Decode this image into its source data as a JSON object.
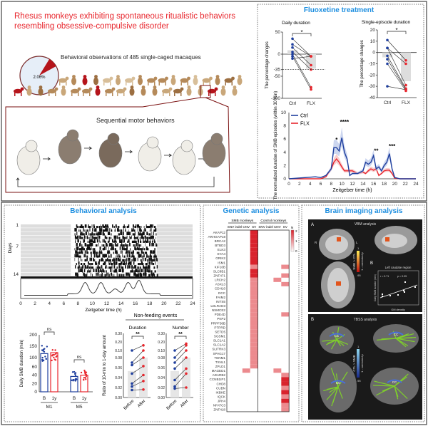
{
  "headline": [
    "Rhesus monkeys exhibiting spontaneous ritualistic behaviors",
    "resembling obsessive-compulsive disorder"
  ],
  "pie": {
    "label": "2.06%",
    "fraction": 0.0206,
    "caption": "Behavioral observations of 485 single-caged macaques"
  },
  "sequence_label": "Sequential motor behaviors",
  "colors": {
    "accent_red": "#e8262d",
    "title_blue": "#1e8fe0",
    "ctrl": "#1f3f9e",
    "flx": "#e8262d",
    "monkey_brown": "#b58a5a",
    "monkey_red": "#b5141b"
  },
  "fluoxetine": {
    "title": "Fluoxetine treatment",
    "daily": {
      "title": "Daily duration",
      "ylabel": "The percentage changes",
      "yticks": [
        "50",
        "0",
        "-35",
        "-50",
        "-100"
      ],
      "xticks": [
        "Ctrl",
        "FLX"
      ],
      "sig": "*",
      "threshold": -35,
      "ctrl": [
        35,
        22,
        15,
        5,
        0,
        -5,
        -10
      ],
      "flx": [
        -5,
        -5,
        -25,
        -35,
        -75,
        -80,
        -5
      ]
    },
    "single": {
      "title": "Single-episode duration",
      "ylabel": "The percentage changes",
      "yticks": [
        "20",
        "10",
        "0",
        "-10",
        "-20",
        "-30",
        "-40"
      ],
      "xticks": [
        "Ctrl",
        "FLX"
      ],
      "sig": "*",
      "ctrl": [
        11,
        4,
        4,
        -3,
        -6,
        -10,
        -30
      ],
      "flx": [
        -7,
        -10,
        -29,
        -32,
        -33,
        -34,
        -33
      ]
    }
  },
  "chart_data": {
    "type": "line",
    "xlabel": "Zeitgeber time (h)",
    "ylabel": "The normalized duration of SMB episodes (within 30 min)",
    "xlim": [
      0,
      24
    ],
    "ylim": [
      0,
      10
    ],
    "xticks": [
      "0",
      "2",
      "4",
      "6",
      "8",
      "10",
      "12",
      "14",
      "16",
      "18",
      "20",
      "22",
      "24"
    ],
    "yticks": [
      "0",
      "2",
      "4",
      "6",
      "8",
      "10"
    ],
    "x": [
      0,
      5,
      6,
      7,
      8,
      8.5,
      9,
      9.5,
      10,
      10.5,
      11,
      11.5,
      12,
      13,
      14,
      14.5,
      15,
      15.5,
      16,
      16.5,
      17,
      17.5,
      18,
      18.5,
      19,
      19.5,
      20,
      21,
      24
    ],
    "series": [
      {
        "name": "Ctrl",
        "values": [
          0,
          0.3,
          0.2,
          0.5,
          1.5,
          4.7,
          4.7,
          4.2,
          6.2,
          4,
          3,
          0.5,
          0.8,
          0.8,
          1.2,
          2.5,
          2.2,
          2.5,
          3.5,
          1.5,
          1.8,
          1.2,
          2,
          2.5,
          3.8,
          1.5,
          0.2,
          0,
          0
        ]
      },
      {
        "name": "FLX",
        "values": [
          0,
          0,
          0,
          0.3,
          1.5,
          2.5,
          3,
          2.5,
          1.8,
          1.2,
          1.2,
          1.2,
          1.2,
          0.8,
          1,
          0.8,
          1.2,
          1.5,
          1.3,
          1.5,
          0.5,
          0.8,
          1.2,
          1.3,
          1.3,
          0.8,
          0.1,
          0,
          0
        ]
      }
    ],
    "annotations": [
      {
        "x": 9,
        "text": "*"
      },
      {
        "x": 10.5,
        "text": "****"
      },
      {
        "x": 16.5,
        "text": "**"
      },
      {
        "x": 19.5,
        "text": "***"
      }
    ]
  },
  "behavioral": {
    "title": "Behavioral analysis",
    "days_label": "Days",
    "day_ticks": [
      "1",
      "7",
      "14"
    ],
    "xticks": [
      "0",
      "2",
      "4",
      "6",
      "8",
      "10",
      "12",
      "14",
      "16",
      "18",
      "20",
      "22",
      "24"
    ],
    "xlabel": "Zeitgeber time (h)",
    "bar": {
      "ylabel": "Daily SMB duration (min)",
      "yticks": [
        "200",
        "150",
        "100",
        "60",
        "40",
        "20",
        "0"
      ],
      "groups": [
        "M1",
        "M5"
      ],
      "conds": [
        "B",
        "1y"
      ],
      "sig": [
        "ns",
        "ns"
      ],
      "means": [
        118,
        122,
        37,
        40
      ]
    },
    "nonfeeding": {
      "title": "Non-feeding events",
      "ylabel": "Ratio of 10-min to 1-day amount",
      "yticks": [
        "0.30",
        "0.20",
        "0.10",
        "0.08",
        "0.06",
        "0.04",
        "0.02",
        "0.00"
      ],
      "panels": [
        "Duration",
        "Number"
      ],
      "conds": [
        "Before",
        "After"
      ],
      "sig": "**"
    }
  },
  "genetic": {
    "title": "Genetic analysis",
    "groups": [
      "SMB monkeys",
      "Control monkeys"
    ],
    "cols": [
      "SNV",
      "indel",
      "CNV",
      "SV"
    ],
    "legend": {
      "title": "N",
      "ticks": [
        "2",
        "1",
        "0"
      ]
    },
    "genes": [
      "AKAP12",
      "ARHGAP18",
      "BRCA2",
      "BTBD3",
      "ELK3",
      "EYA4",
      "GRIK2",
      "ISM1",
      "KIF16B",
      "SLC8B1",
      "ZNF471",
      "LRCH2",
      "ASXL3",
      "CDH10",
      "DCC",
      "FAIM2",
      "INTS5",
      "LDLRAD3",
      "NSMCE2",
      "PDE4D",
      "PKP2",
      "PRPF38B",
      "PTPRD",
      "SETD5",
      "SGSM1",
      "SLC1A1",
      "SLC1A2",
      "SLITRK3",
      "SPAG17",
      "TENM1",
      "TXNL1",
      "ZPLD1",
      "MAGED1",
      "ADARB2",
      "CCNB1IP1",
      "CHD8",
      "CUBN",
      "IKBKE",
      "IQCK",
      "JPH4",
      "NFATC3",
      "ZNF418"
    ]
  },
  "brain": {
    "title": "Brain imaging analysis",
    "vbm": {
      "label": "A",
      "title": "VBM analysis",
      "colorbar": "SMB > CTL",
      "p_label": "1 - corrected p",
      "ticks": [
        "1",
        ".95"
      ],
      "R": "R",
      "L": "L"
    },
    "scatter": {
      "label": "B",
      "title": "Left caudate region",
      "r": "r = 0.71",
      "p": "p = 0.05",
      "xlabel": "GM density",
      "ylabel": "Daily SMB duration (min)"
    },
    "tbss": {
      "label": "B",
      "title": "TBSS analysis",
      "colorbar": "CTL > SMB",
      "p_label": "1 - corrected p",
      "ticks": [
        "1",
        ".95"
      ],
      "cc": "CC"
    }
  }
}
